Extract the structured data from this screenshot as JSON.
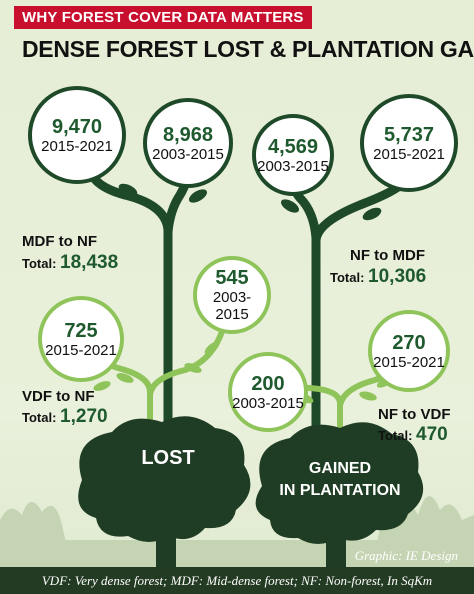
{
  "kicker": "WHY FOREST COVER DATA MATTERS",
  "headline": "DENSE FOREST LOST & PLANTATION GAINED",
  "colors": {
    "kicker_bg": "#c8102e",
    "dark_green": "#1f4a2a",
    "light_green": "#8fc45a",
    "value_green": "#1f5a2e"
  },
  "lost": {
    "trunk_label": "LOST",
    "mdf": {
      "category": "MDF to NF",
      "total_label": "Total:",
      "total_value": "18,438",
      "periods": [
        {
          "value": "9,470",
          "years": "2015-2021"
        },
        {
          "value": "8,968",
          "years": "2003-2015"
        }
      ]
    },
    "vdf": {
      "category": "VDF to NF",
      "total_label": "Total:",
      "total_value": "1,270",
      "periods": [
        {
          "value": "725",
          "years": "2015-2021"
        },
        {
          "value": "545",
          "years": "2003-2015"
        }
      ]
    }
  },
  "gained": {
    "trunk_label_line1": "GAINED",
    "trunk_label_line2": "IN PLANTATION",
    "mdf": {
      "category": "NF to MDF",
      "total_label": "Total:",
      "total_value": "10,306",
      "periods": [
        {
          "value": "4,569",
          "years": "2003-2015"
        },
        {
          "value": "5,737",
          "years": "2015-2021"
        }
      ]
    },
    "vdf": {
      "category": "NF to VDF",
      "total_label": "Total:",
      "total_value": "470",
      "periods": [
        {
          "value": "200",
          "years": "2003-2015"
        },
        {
          "value": "270",
          "years": "2015-2021"
        }
      ]
    }
  },
  "credit": "Graphic: IE Design",
  "footer": "VDF: Very dense forest; MDF: Mid-dense forest; NF: Non-forest, In SqKm"
}
